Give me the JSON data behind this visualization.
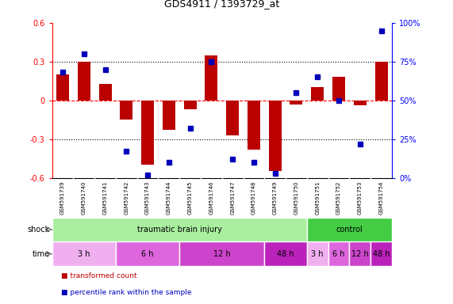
{
  "title": "GDS4911 / 1393729_at",
  "samples": [
    "GSM591739",
    "GSM591740",
    "GSM591741",
    "GSM591742",
    "GSM591743",
    "GSM591744",
    "GSM591745",
    "GSM591746",
    "GSM591747",
    "GSM591748",
    "GSM591749",
    "GSM591750",
    "GSM591751",
    "GSM591752",
    "GSM591753",
    "GSM591754"
  ],
  "bar_values": [
    0.2,
    0.3,
    0.13,
    -0.15,
    -0.5,
    -0.23,
    -0.07,
    0.35,
    -0.27,
    -0.38,
    -0.55,
    -0.03,
    0.1,
    0.18,
    -0.04,
    0.3
  ],
  "percentile_values": [
    68,
    80,
    70,
    17,
    2,
    10,
    32,
    75,
    12,
    10,
    3,
    55,
    65,
    50,
    22,
    95
  ],
  "bar_color": "#bb0000",
  "percentile_color": "#0000bb",
  "ylim_left": [
    -0.6,
    0.6
  ],
  "ylim_right": [
    0,
    100
  ],
  "yticks_left": [
    -0.6,
    -0.3,
    0.0,
    0.3,
    0.6
  ],
  "ytick_labels_left": [
    "-0.6",
    "-0.3",
    "0",
    "0.3",
    "0.6"
  ],
  "yticks_right": [
    0,
    25,
    50,
    75,
    100
  ],
  "ytick_labels_right": [
    "0%",
    "25%",
    "50%",
    "75%",
    "100%"
  ],
  "hline_y": 0.0,
  "dotted_lines": [
    -0.3,
    0.3
  ],
  "shock_row": [
    {
      "label": "traumatic brain injury",
      "start": 0,
      "end": 12,
      "color": "#aaeea0"
    },
    {
      "label": "control",
      "start": 12,
      "end": 16,
      "color": "#44cc44"
    }
  ],
  "time_row": [
    {
      "label": "3 h",
      "start": 0,
      "end": 3,
      "color": "#f0b0f0"
    },
    {
      "label": "6 h",
      "start": 3,
      "end": 6,
      "color": "#dd66dd"
    },
    {
      "label": "12 h",
      "start": 6,
      "end": 10,
      "color": "#cc44cc"
    },
    {
      "label": "48 h",
      "start": 10,
      "end": 12,
      "color": "#bb22bb"
    },
    {
      "label": "3 h",
      "start": 12,
      "end": 13,
      "color": "#f0b0f0"
    },
    {
      "label": "6 h",
      "start": 13,
      "end": 14,
      "color": "#dd66dd"
    },
    {
      "label": "12 h",
      "start": 14,
      "end": 15,
      "color": "#cc44cc"
    },
    {
      "label": "48 h",
      "start": 15,
      "end": 16,
      "color": "#bb22bb"
    }
  ],
  "legend_items": [
    {
      "label": "transformed count",
      "color": "#bb0000"
    },
    {
      "label": "percentile rank within the sample",
      "color": "#0000bb"
    }
  ],
  "background_color": "#ffffff",
  "sample_box_color": "#d8d8d8",
  "sample_box_line_color": "#ffffff"
}
